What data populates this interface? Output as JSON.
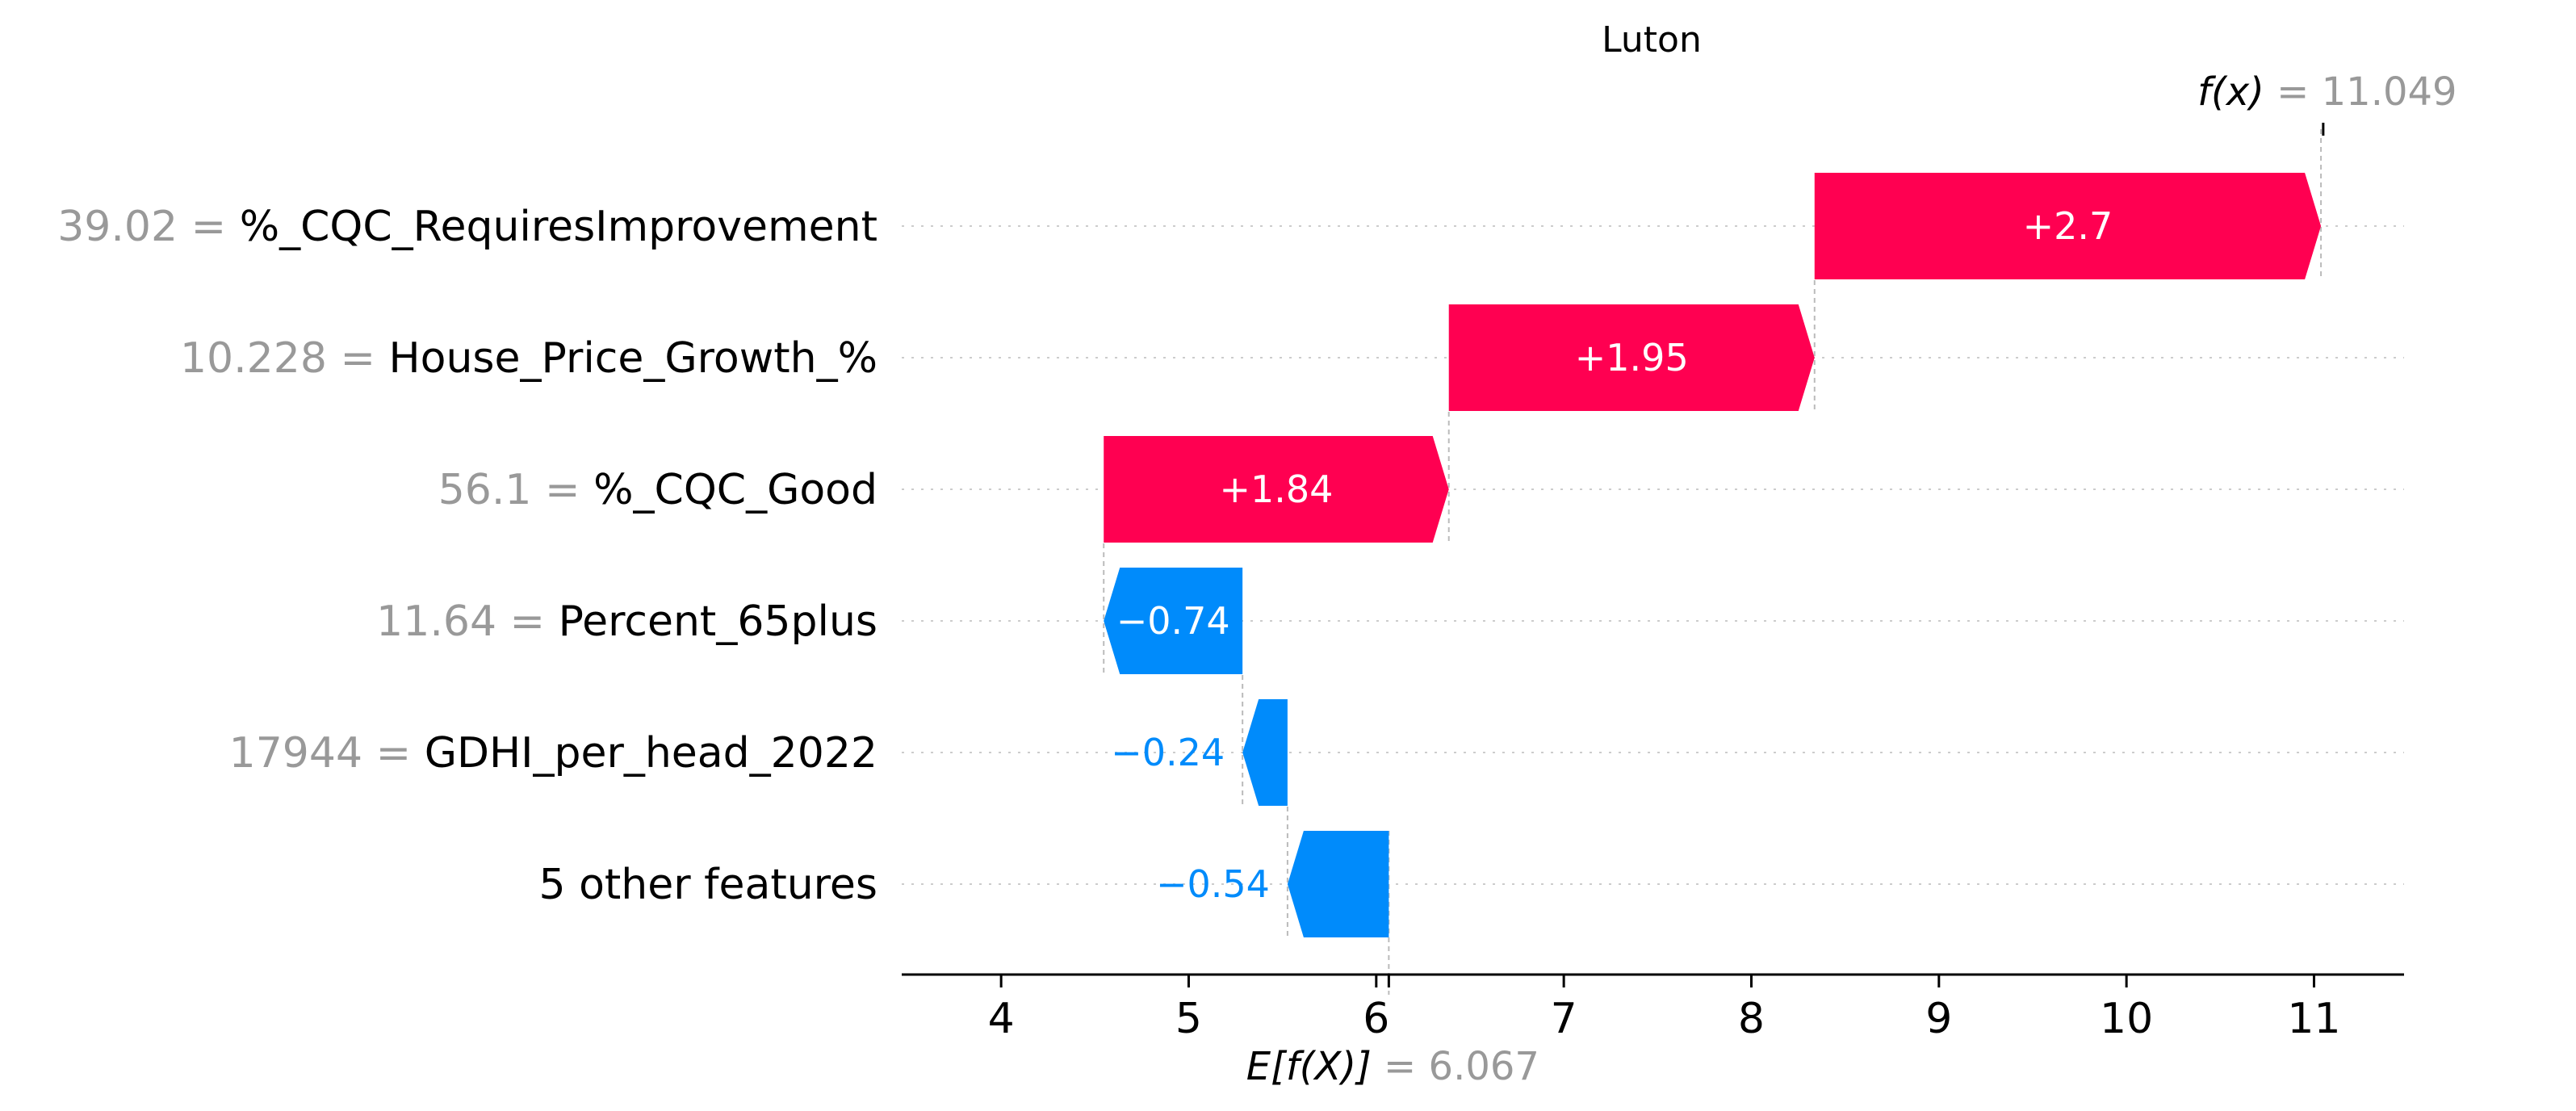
{
  "colors": {
    "positive": "#ff0051",
    "negative": "#008bfb",
    "value_gray": "#999999",
    "text": "#000000"
  },
  "chart_data": {
    "type": "waterfall",
    "title": "Luton",
    "base_value": 6.067,
    "base_value_label": "6.067",
    "base_label_prefix": "E[f(X)]",
    "output_value": 11.049,
    "output_value_label": "11.049",
    "output_label_prefix": "f(x)",
    "xlim": [
      3.47,
      11.48
    ],
    "xticks": [
      4,
      5,
      6,
      7,
      8,
      9,
      10,
      11
    ],
    "features": [
      {
        "value": "39.02",
        "name": "%_CQC_RequiresImprovement",
        "contribution": 2.7,
        "label": "+2.7"
      },
      {
        "value": "10.228",
        "name": "House_Price_Growth_%",
        "contribution": 1.95,
        "label": "+1.95"
      },
      {
        "value": "56.1",
        "name": "%_CQC_Good",
        "contribution": 1.84,
        "label": "+1.84"
      },
      {
        "value": "11.64",
        "name": "Percent_65plus",
        "contribution": -0.74,
        "label": "−0.74"
      },
      {
        "value": "17944",
        "name": "GDHI_per_head_2022",
        "contribution": -0.24,
        "label": "−0.24"
      },
      {
        "value": "",
        "name": "5 other features",
        "contribution": -0.54,
        "label": "−0.54"
      }
    ]
  }
}
